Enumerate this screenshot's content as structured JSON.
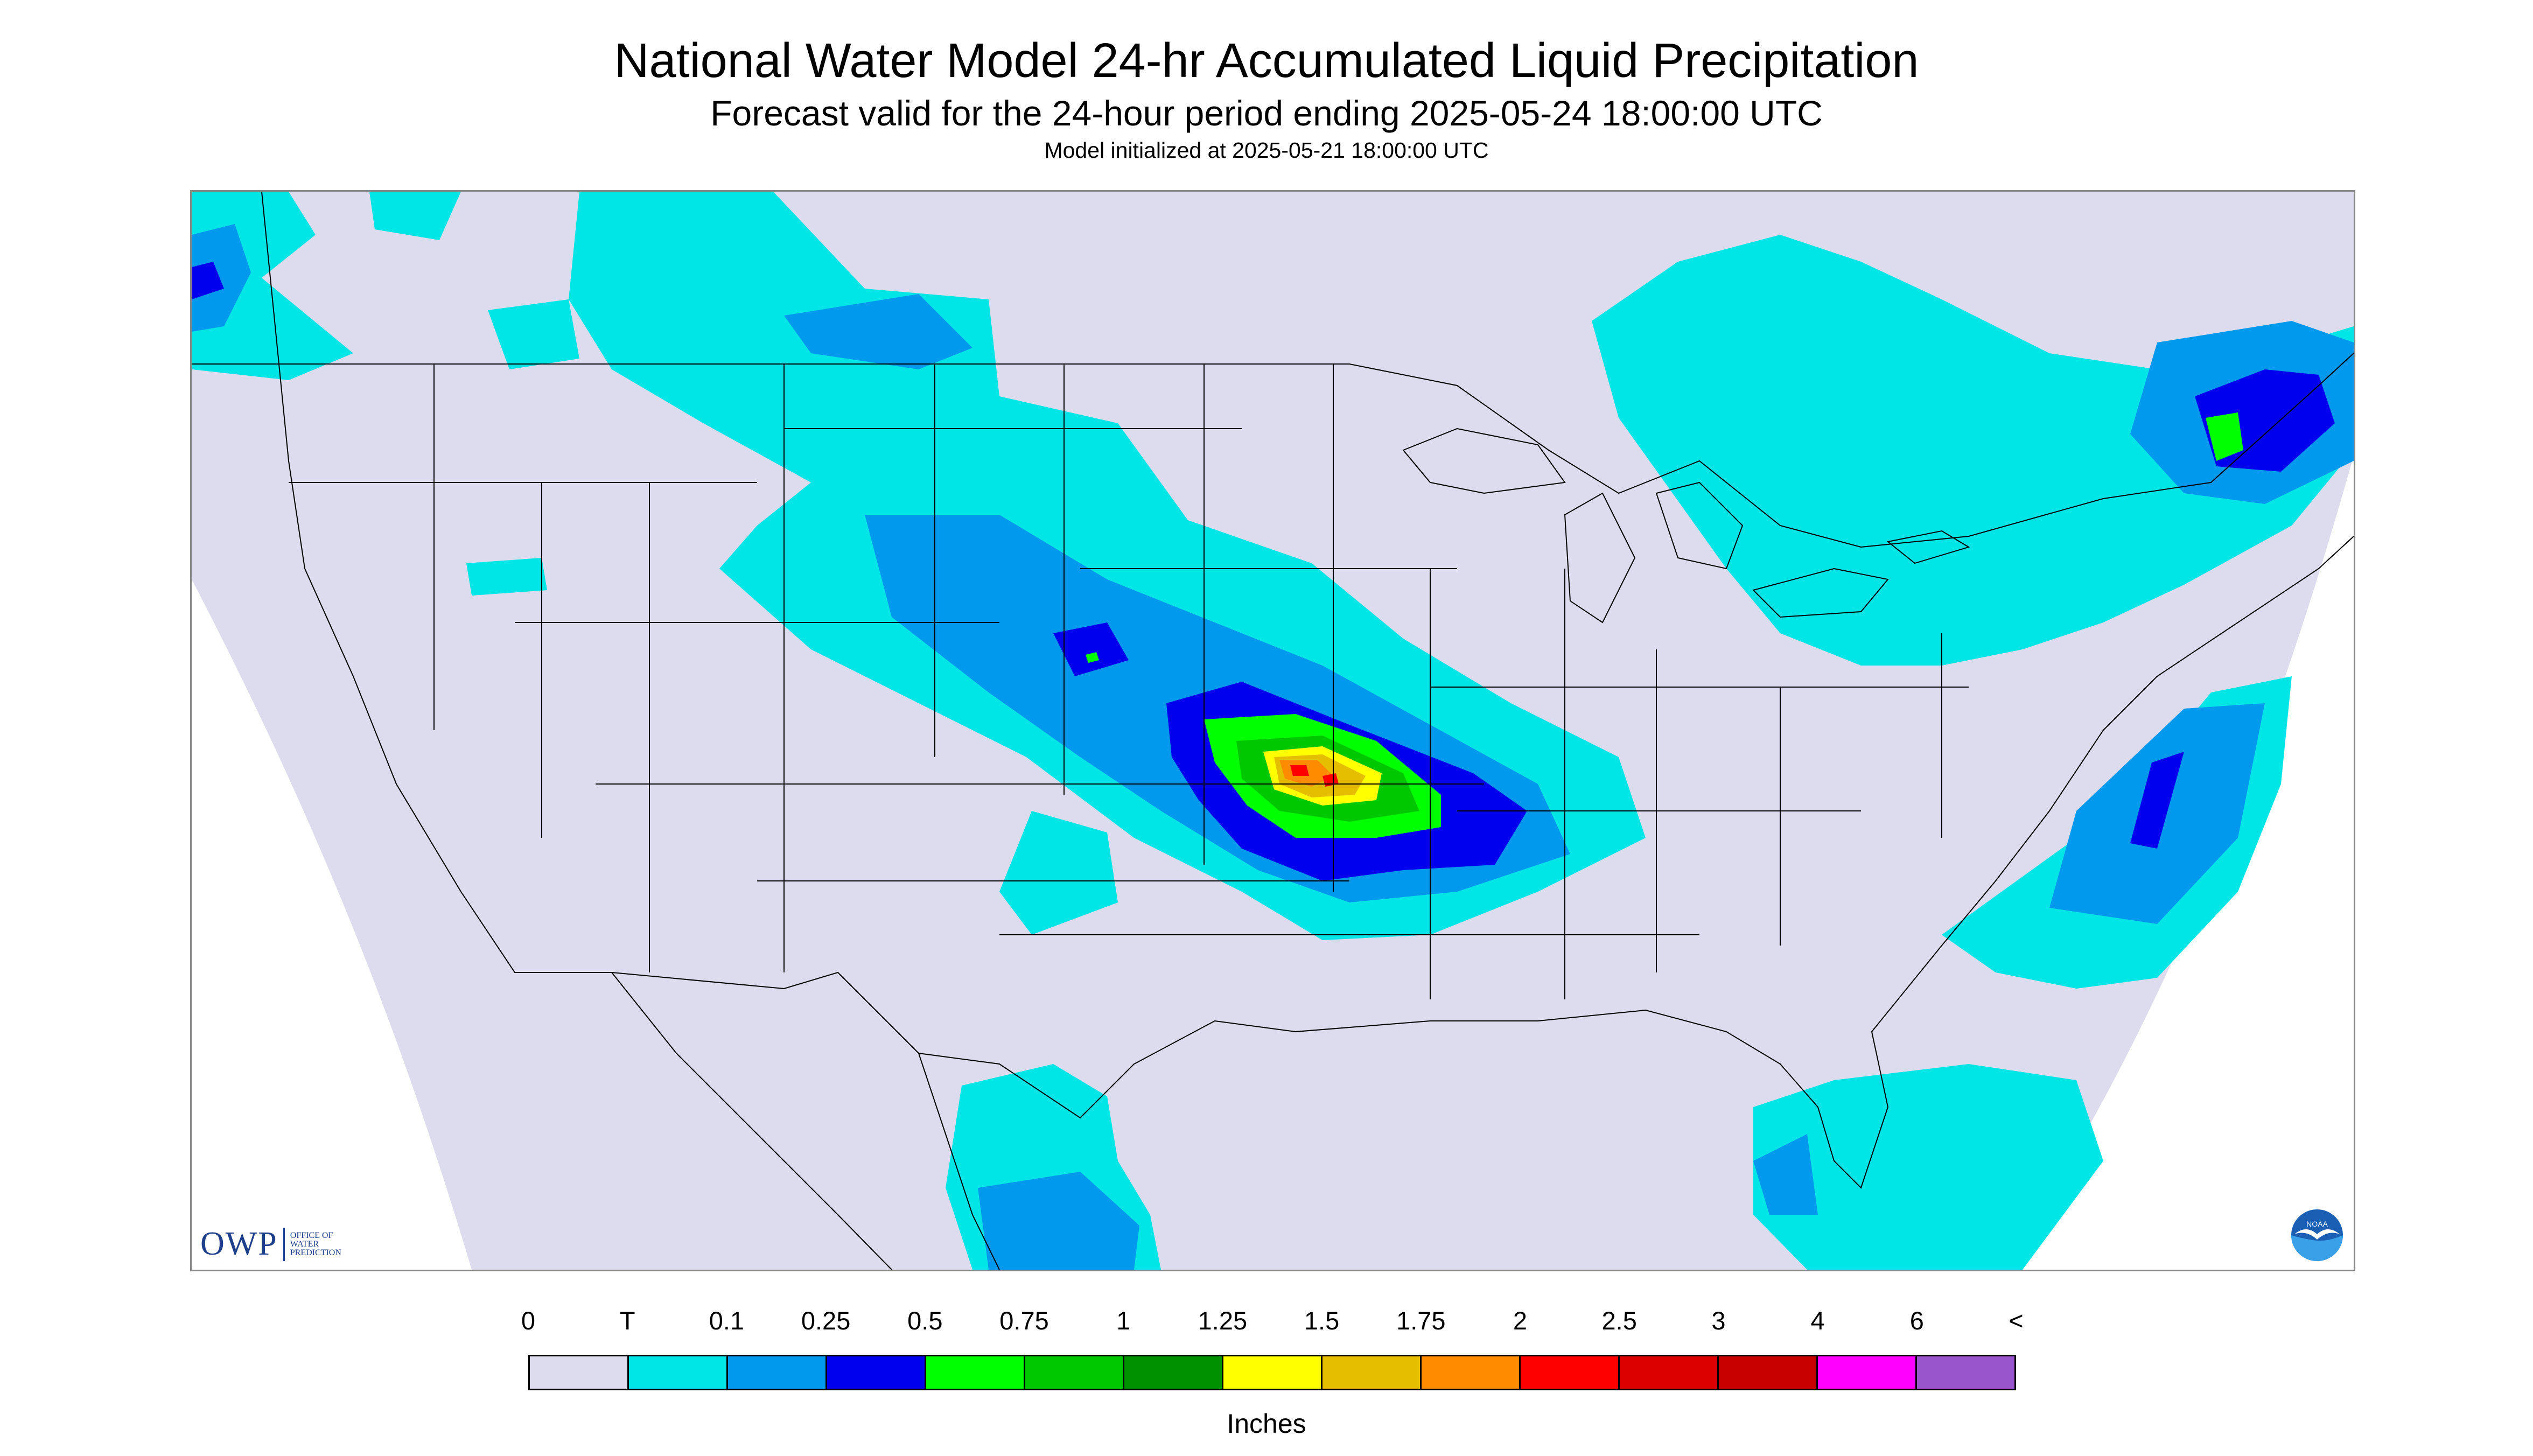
{
  "header": {
    "title": "National Water Model 24-hr Accumulated Liquid Precipitation",
    "subtitle": "Forecast valid for the 24-hour period ending 2025-05-24 18:00:00 UTC",
    "init": "Model initialized at 2025-05-21 18:00:00 UTC"
  },
  "map": {
    "background_color": "#dcdcee",
    "outside_domain_color": "#ffffff",
    "boundary_color": "#000000"
  },
  "logos": {
    "owp_text": "OWP",
    "owp_line1": "OFFICE OF",
    "owp_line2": "WATER",
    "owp_line3": "PREDICTION",
    "noaa_text": "NOAA",
    "noaa_icon": "noaa-seagull-icon"
  },
  "legend": {
    "labels": [
      "0",
      "T",
      "0.1",
      "0.25",
      "0.5",
      "0.75",
      "1",
      "1.25",
      "1.5",
      "1.75",
      "2",
      "2.5",
      "3",
      "4",
      "6",
      "<"
    ],
    "colors": [
      "#dcdcee",
      "#00e5e5",
      "#0099ee",
      "#0000ee",
      "#00ff00",
      "#00c800",
      "#009100",
      "#ffff00",
      "#e6be00",
      "#ff8c00",
      "#ff0000",
      "#dc0000",
      "#c80000",
      "#ff00ff",
      "#9955cc"
    ],
    "unit": "Inches"
  }
}
